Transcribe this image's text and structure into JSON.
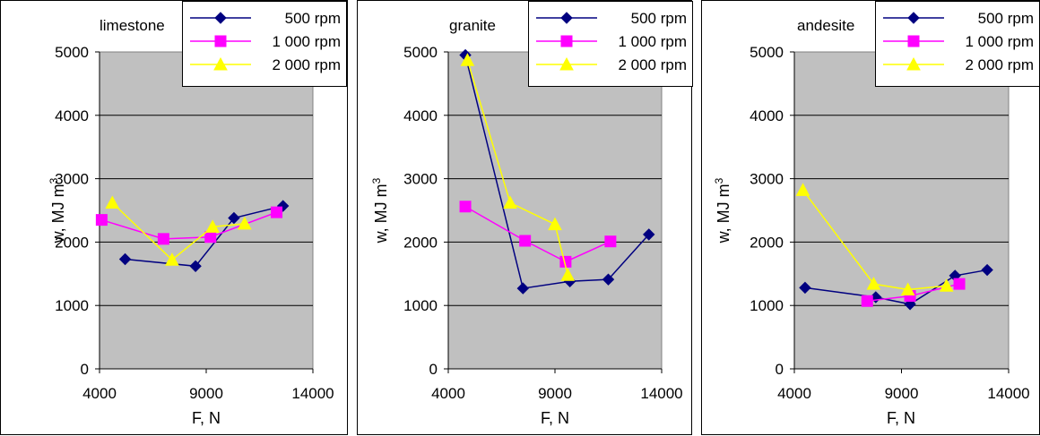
{
  "chart_data": [
    {
      "type": "line",
      "title": "limestone",
      "xlabel": "F, N",
      "ylabel": "w, MJ m-3",
      "ylabel_main": "w, MJ m",
      "ylabel_sup": "3",
      "xlim": [
        4000,
        14000
      ],
      "ylim": [
        0,
        5000
      ],
      "x_ticks": [
        "4000",
        "9000",
        "14000"
      ],
      "y_ticks": [
        "0",
        "1000",
        "2000",
        "3000",
        "4000",
        "5000"
      ],
      "grid": true,
      "legend": "top-right",
      "series": [
        {
          "name": "500 rpm",
          "color": "#000080",
          "marker": "diamond",
          "x": [
            5200,
            8500,
            10300,
            12600
          ],
          "y": [
            1730,
            1620,
            2380,
            2570
          ]
        },
        {
          "name": "1 000 rpm",
          "color": "#ff00ff",
          "marker": "square",
          "x": [
            4100,
            7000,
            9200,
            12300
          ],
          "y": [
            2350,
            2050,
            2080,
            2470
          ]
        },
        {
          "name": "2 000 rpm",
          "color": "#ffff00",
          "marker": "triangle",
          "x": [
            4600,
            7400,
            9300,
            10800
          ],
          "y": [
            2620,
            1720,
            2240,
            2290
          ]
        }
      ]
    },
    {
      "type": "line",
      "title": "granite",
      "xlabel": "F, N",
      "ylabel": "w, MJ m-3",
      "ylabel_main": "w, MJ m",
      "ylabel_sup": "3",
      "xlim": [
        4000,
        14000
      ],
      "ylim": [
        0,
        5000
      ],
      "x_ticks": [
        "4000",
        "9000",
        "14000"
      ],
      "y_ticks": [
        "0",
        "1000",
        "2000",
        "3000",
        "4000",
        "5000"
      ],
      "grid": true,
      "legend": "top-right",
      "series": [
        {
          "name": "500 rpm",
          "color": "#000080",
          "marker": "diamond",
          "x": [
            4800,
            7500,
            9700,
            11500,
            13400
          ],
          "y": [
            4950,
            1270,
            1380,
            1410,
            2120
          ]
        },
        {
          "name": "1 000 rpm",
          "color": "#ff00ff",
          "marker": "square",
          "x": [
            4800,
            7600,
            9500,
            11600
          ],
          "y": [
            2560,
            2020,
            1690,
            2010
          ]
        },
        {
          "name": "2 000 rpm",
          "color": "#ffff00",
          "marker": "triangle",
          "x": [
            4900,
            6900,
            9000,
            9600
          ],
          "y": [
            4870,
            2620,
            2280,
            1480
          ]
        }
      ]
    },
    {
      "type": "line",
      "title": "andesite",
      "xlabel": "F, N",
      "ylabel": "w, MJ m-3",
      "ylabel_main": "w, MJ m",
      "ylabel_sup": "3",
      "xlim": [
        4000,
        14000
      ],
      "ylim": [
        0,
        5000
      ],
      "x_ticks": [
        "4000",
        "9000",
        "14000"
      ],
      "y_ticks": [
        "0",
        "1000",
        "2000",
        "3000",
        "4000",
        "5000"
      ],
      "grid": true,
      "legend": "top-right",
      "series": [
        {
          "name": "500 rpm",
          "color": "#000080",
          "marker": "diamond",
          "x": [
            4500,
            7800,
            9400,
            11500,
            13000
          ],
          "y": [
            1280,
            1130,
            1020,
            1470,
            1560
          ]
        },
        {
          "name": "1 000 rpm",
          "color": "#ff00ff",
          "marker": "square",
          "x": [
            7400,
            9400,
            11700
          ],
          "y": [
            1070,
            1150,
            1340
          ]
        },
        {
          "name": "2 000 rpm",
          "color": "#ffff00",
          "marker": "triangle",
          "x": [
            4400,
            7700,
            9300,
            11100
          ],
          "y": [
            2820,
            1340,
            1250,
            1310
          ]
        }
      ]
    }
  ]
}
